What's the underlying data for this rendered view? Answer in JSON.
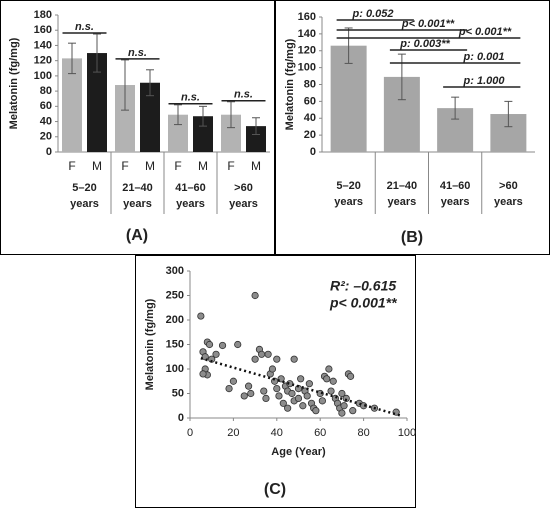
{
  "chart_data": [
    {
      "type": "bar",
      "label": "(A)",
      "ylabel": "Melatonin (fg/mg)",
      "categories": [
        "5–20 years",
        "21–40 years",
        "41–60 years",
        ">60 years"
      ],
      "series": [
        {
          "name": "F",
          "color": "#b3b3b3",
          "values": [
            123,
            88,
            49,
            49
          ],
          "errors": [
            20,
            33,
            13,
            17
          ]
        },
        {
          "name": "M",
          "color": "#1c1c1c",
          "values": [
            130,
            91,
            47,
            34
          ],
          "errors": [
            25,
            17,
            13,
            11
          ]
        }
      ],
      "annotations": [
        "n.s.",
        "n.s.",
        "n.s.",
        "n.s."
      ],
      "ylim": [
        0,
        180
      ],
      "yticks": [
        0,
        20,
        40,
        60,
        80,
        100,
        120,
        140,
        160,
        180
      ]
    },
    {
      "type": "bar",
      "label": "(B)",
      "ylabel": "Melatonin (fg/mg)",
      "categories": [
        "5–20 years",
        "21–40 years",
        "41–60 years",
        ">60 years"
      ],
      "series": [
        {
          "color": "#a6a6a6",
          "values": [
            126,
            89,
            52,
            45
          ],
          "errors": [
            21,
            27,
            13,
            15
          ]
        }
      ],
      "brackets": [
        {
          "text": "p: 0.052",
          "from": 0,
          "to": 1
        },
        {
          "text": "p< 0.001**",
          "from": 0,
          "to": 2
        },
        {
          "text": "p< 0.001**",
          "from": 0,
          "to": 3
        },
        {
          "text": "p: 0.003**",
          "from": 1,
          "to": 2
        },
        {
          "text": "p: 0.001",
          "from": 1,
          "to": 3
        },
        {
          "text": "p: 1.000",
          "from": 2,
          "to": 3
        }
      ],
      "ylim": [
        0,
        160
      ],
      "yticks": [
        0,
        20,
        40,
        60,
        80,
        100,
        120,
        140,
        160
      ]
    },
    {
      "type": "scatter",
      "label": "(C)",
      "xlabel": "Age (Year)",
      "ylabel": "Melatonin (fg/mg)",
      "annotations": [
        "R²: –0.615",
        "p< 0.001**"
      ],
      "color": "#8c8c8c",
      "x": [
        5,
        6,
        7,
        8,
        9,
        7,
        8,
        10,
        15,
        18,
        20,
        22,
        25,
        27,
        28,
        30,
        30,
        32,
        33,
        34,
        35,
        36,
        37,
        38,
        39,
        40,
        40,
        41,
        42,
        43,
        44,
        45,
        45,
        46,
        47,
        48,
        48,
        50,
        50,
        51,
        52,
        53,
        54,
        55,
        56,
        57,
        58,
        60,
        61,
        62,
        63,
        64,
        65,
        66,
        67,
        68,
        69,
        70,
        70,
        71,
        72,
        73,
        74,
        75,
        78,
        80,
        85,
        95,
        6,
        12
      ],
      "y": [
        208,
        135,
        125,
        155,
        150,
        100,
        88,
        120,
        148,
        60,
        75,
        150,
        45,
        65,
        50,
        250,
        120,
        140,
        130,
        55,
        40,
        130,
        90,
        100,
        75,
        60,
        120,
        45,
        80,
        30,
        65,
        55,
        20,
        70,
        50,
        35,
        120,
        60,
        40,
        80,
        25,
        55,
        45,
        70,
        30,
        20,
        15,
        50,
        35,
        85,
        80,
        100,
        55,
        75,
        40,
        30,
        20,
        50,
        10,
        25,
        40,
        90,
        85,
        15,
        30,
        25,
        20,
        12,
        90,
        130
      ],
      "trendline": {
        "x": [
          5,
          97
        ],
        "y": [
          122,
          5
        ]
      },
      "xlim": [
        0,
        100
      ],
      "xticks": [
        0,
        20,
        40,
        60,
        80,
        100
      ],
      "ylim": [
        0,
        300
      ],
      "yticks": [
        0,
        50,
        100,
        150,
        200,
        250,
        300
      ]
    }
  ]
}
